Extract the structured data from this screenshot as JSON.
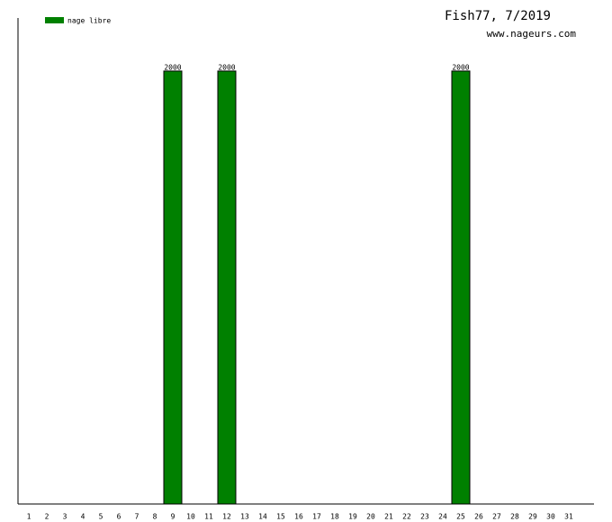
{
  "chart_data": {
    "type": "bar",
    "title": "Fish77, 7/2019",
    "subtitle": "www.nageurs.com",
    "categories": [
      "1",
      "2",
      "3",
      "4",
      "5",
      "6",
      "7",
      "8",
      "9",
      "10",
      "11",
      "12",
      "13",
      "14",
      "15",
      "16",
      "17",
      "18",
      "19",
      "20",
      "21",
      "22",
      "23",
      "24",
      "25",
      "26",
      "27",
      "28",
      "29",
      "30",
      "31"
    ],
    "series": [
      {
        "name": "nage libre",
        "color": "#008000",
        "values": [
          null,
          null,
          null,
          null,
          null,
          null,
          null,
          null,
          2000,
          null,
          null,
          2000,
          null,
          null,
          null,
          null,
          null,
          null,
          null,
          null,
          null,
          null,
          null,
          null,
          2000,
          null,
          null,
          null,
          null,
          null,
          null
        ]
      }
    ],
    "ylim": [
      0,
      2245
    ]
  }
}
